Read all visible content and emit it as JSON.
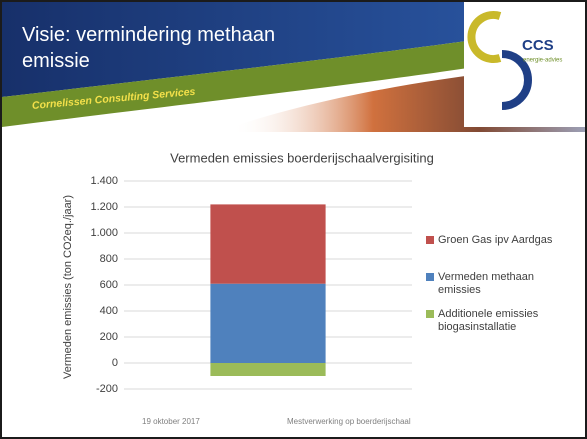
{
  "header": {
    "title": "Visie: vermindering methaan emissie",
    "brand": "Cornelissen Consulting Services",
    "logo_text": "CCS",
    "logo_tagline": "energie-advies"
  },
  "chart_data": {
    "type": "bar",
    "stacked": true,
    "title": "Vermeden emissies boerderijschaalvergisiting",
    "y_label": "Vermeden emissies (ton CO2eq./jaar)",
    "categories": [
      null
    ],
    "series": [
      {
        "name": "Additionele emissies biogasinstallatie",
        "color": "#9bbb59",
        "values": [
          -100
        ]
      },
      {
        "name": "Vermeden methaan emissies",
        "color": "#4f81bd",
        "values": [
          610
        ]
      },
      {
        "name": "Groen Gas ipv Aardgas",
        "color": "#c0504d",
        "values": [
          610
        ]
      }
    ],
    "ylim": [
      -200,
      1400
    ],
    "yticks": [
      -200,
      0,
      200,
      400,
      600,
      800,
      {
        "value": 1000,
        "label": "1.000"
      },
      {
        "value": 1200,
        "label": "1.200"
      },
      {
        "value": 1400,
        "label": "1.400"
      }
    ],
    "grid": true,
    "legend": "right"
  },
  "footer": {
    "date": "19 oktober 2017",
    "text": "Mestverwerking op boerderijschaal"
  }
}
